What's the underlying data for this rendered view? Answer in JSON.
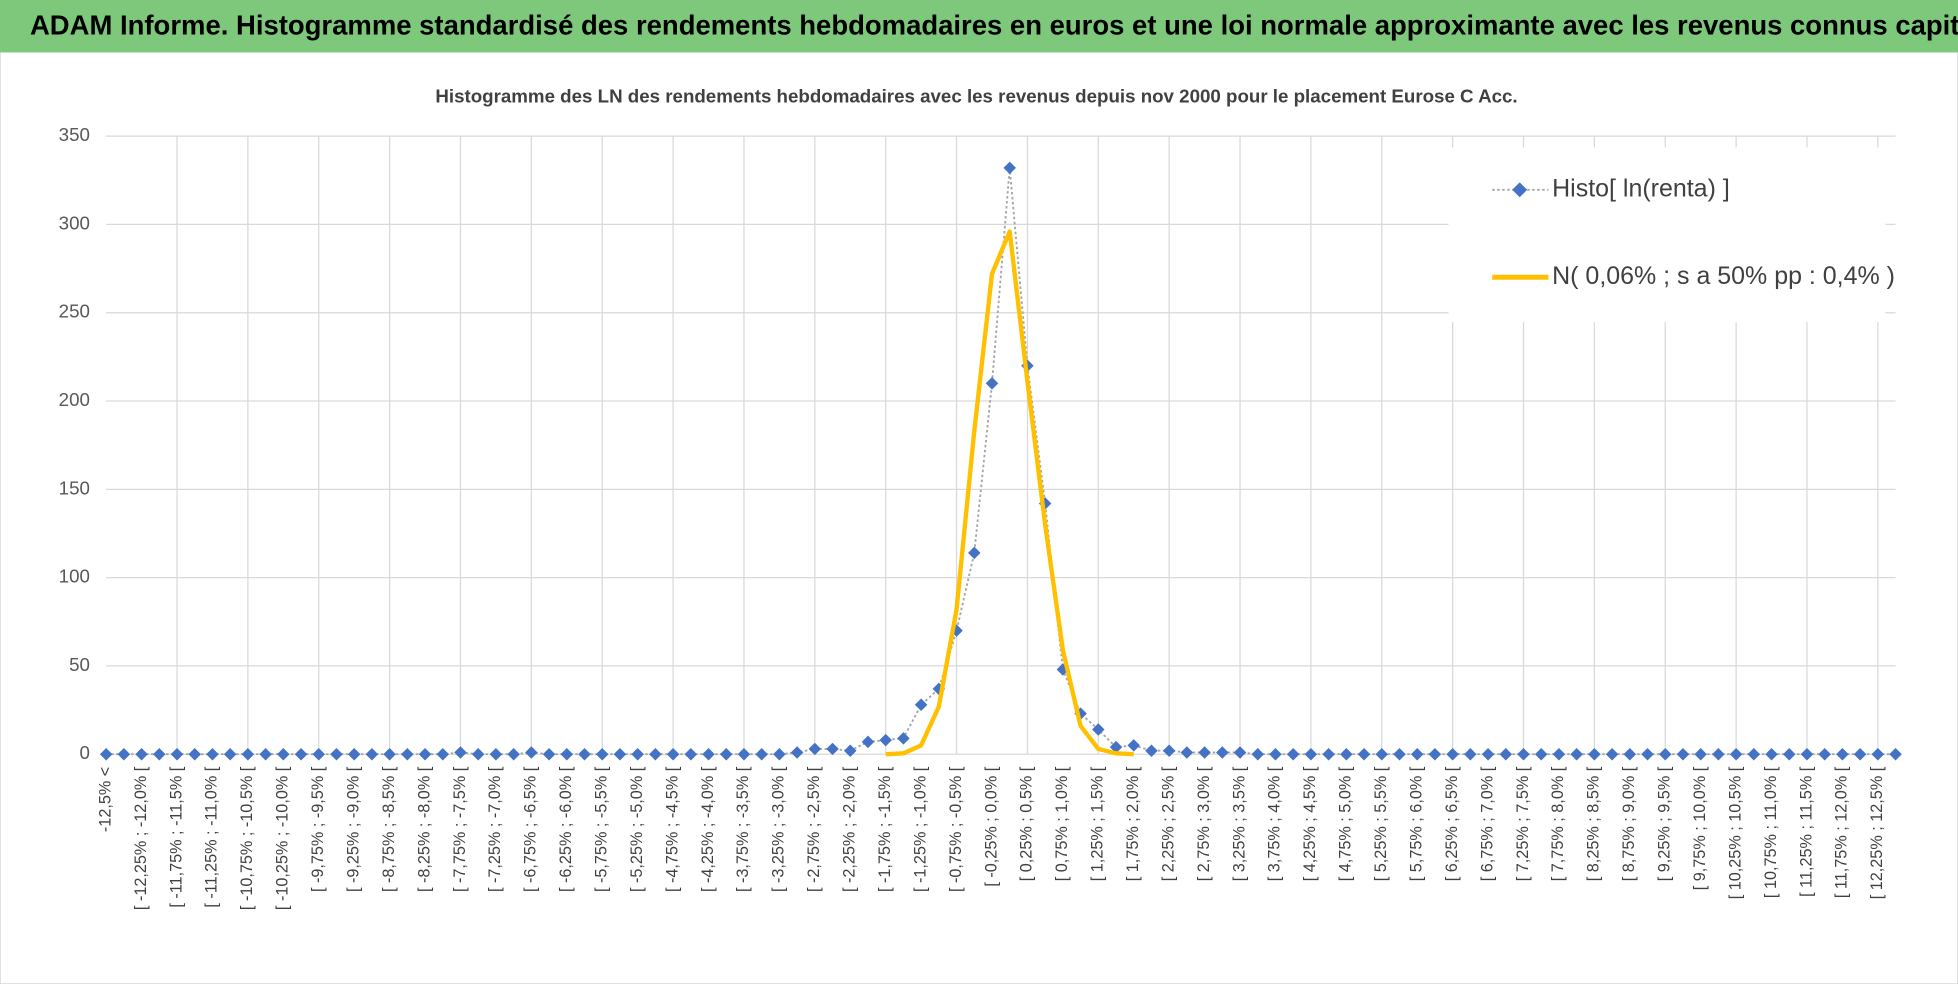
{
  "chart_data": {
    "type": "line",
    "banner": "ADAM Informe. Histogramme standardisé des rendements hebdomadaires en euros et une loi normale approximante avec les revenus connus capitalisés",
    "title": "Histogramme des LN des rendements hebdomadaires avec les revenus depuis nov 2000 pour le placement Eurose C Acc.",
    "categories": [
      "-12,5% <",
      null,
      "[ -12,25% ; -12,0% [",
      null,
      "[ -11,75% ; -11,5% [",
      null,
      "[ -11,25% ; -11,0% [",
      null,
      "[ -10,75% ; -10,5% [",
      null,
      "[ -10,25% ; -10,0% [",
      null,
      "[ -9,75% ; -9,5% [",
      null,
      "[ -9,25% ; -9,0% [",
      null,
      "[ -8,75% ; -8,5% [",
      null,
      "[ -8,25% ; -8,0% [",
      null,
      "[ -7,75% ; -7,5% [",
      null,
      "[ -7,25% ; -7,0% [",
      null,
      "[ -6,75% ; -6,5% [",
      null,
      "[ -6,25% ; -6,0% [",
      null,
      "[ -5,75% ; -5,5% [",
      null,
      "[ -5,25% ; -5,0% [",
      null,
      "[ -4,75% ; -4,5% [",
      null,
      "[ -4,25% ; -4,0% [",
      null,
      "[ -3,75% ; -3,5% [",
      null,
      "[ -3,25% ; -3,0% [",
      null,
      "[ -2,75% ; -2,5% [",
      null,
      "[ -2,25% ; -2,0% [",
      null,
      "[ -1,75% ; -1,5% [",
      null,
      "[ -1,25% ; -1,0% [",
      null,
      "[ -0,75% ; -0,5% [",
      null,
      "[ -0,25% ; 0,0% [",
      null,
      "[ 0,25% ; 0,5% [",
      null,
      "[ 0,75% ; 1,0% [",
      null,
      "[ 1,25% ; 1,5% [",
      null,
      "[ 1,75% ; 2,0% [",
      null,
      "[ 2,25% ; 2,5% [",
      null,
      "[ 2,75% ; 3,0% [",
      null,
      "[ 3,25% ; 3,5% [",
      null,
      "[ 3,75% ; 4,0% [",
      null,
      "[ 4,25% ; 4,5% [",
      null,
      "[ 4,75% ; 5,0% [",
      null,
      "[ 5,25% ; 5,5% [",
      null,
      "[ 5,75% ; 6,0% [",
      null,
      "[ 6,25% ; 6,5% [",
      null,
      "[ 6,75% ; 7,0% [",
      null,
      "[ 7,25% ; 7,5% [",
      null,
      "[ 7,75% ; 8,0% [",
      null,
      "[ 8,25% ; 8,5% [",
      null,
      "[ 8,75% ; 9,0% [",
      null,
      "[ 9,25% ; 9,5% [",
      null,
      "[ 9,75% ; 10,0% [",
      null,
      "[ 10,25% ; 10,5% [",
      null,
      "[ 10,75% ; 11,0% [",
      null,
      "[ 11,25% ; 11,5% [",
      null,
      "[ 11,75% ; 12,0% [",
      null,
      "[ 12,25% ; 12,5% [",
      null
    ],
    "series": [
      {
        "name": "Histo[ ln(renta) ]",
        "color": "#4472c4",
        "values": [
          0,
          0,
          0,
          0,
          0,
          0,
          0,
          0,
          0,
          0,
          0,
          0,
          0,
          0,
          0,
          0,
          0,
          0,
          0,
          0,
          1,
          0,
          0,
          0,
          1,
          0,
          0,
          0,
          0,
          0,
          0,
          0,
          0,
          0,
          0,
          0,
          0,
          0,
          0,
          1,
          3,
          3,
          2,
          7,
          8,
          9,
          28,
          37,
          70,
          114,
          210,
          332,
          220,
          142,
          48,
          23,
          14,
          4,
          5,
          2,
          2,
          1,
          1,
          1,
          1,
          0,
          0,
          0,
          0,
          0,
          0,
          0,
          0,
          0,
          0,
          0,
          0,
          0,
          0,
          0,
          0,
          0,
          0,
          0,
          0,
          0,
          0,
          0,
          0,
          0,
          0,
          0,
          0,
          0,
          0,
          0,
          0,
          0,
          0,
          0,
          0,
          0
        ]
      },
      {
        "name": "N( 0,06% ; s a 50% pp : 0,4% )",
        "color": "#ffc000",
        "values": [
          null,
          null,
          null,
          null,
          null,
          null,
          null,
          null,
          null,
          null,
          null,
          null,
          null,
          null,
          null,
          null,
          null,
          null,
          null,
          null,
          null,
          null,
          null,
          null,
          null,
          null,
          null,
          null,
          null,
          null,
          null,
          null,
          null,
          null,
          null,
          null,
          null,
          null,
          null,
          null,
          null,
          null,
          null,
          null,
          0,
          0.5,
          5,
          27,
          82,
          183,
          272,
          296,
          211,
          130,
          59,
          16,
          3,
          0.5,
          0,
          null,
          null,
          null,
          null,
          null,
          null,
          null,
          null,
          null,
          null,
          null,
          null,
          null,
          null,
          null,
          null,
          null,
          null,
          null,
          null,
          null,
          null,
          null,
          null,
          null,
          null,
          null,
          null,
          null,
          null,
          null,
          null,
          null,
          null,
          null,
          null,
          null,
          null,
          null,
          null,
          null,
          null,
          null
        ]
      }
    ],
    "ylim": [
      0,
      350
    ],
    "yticks": [
      0,
      50,
      100,
      150,
      200,
      250,
      300,
      350
    ],
    "grid": true,
    "legend": "top-right"
  }
}
